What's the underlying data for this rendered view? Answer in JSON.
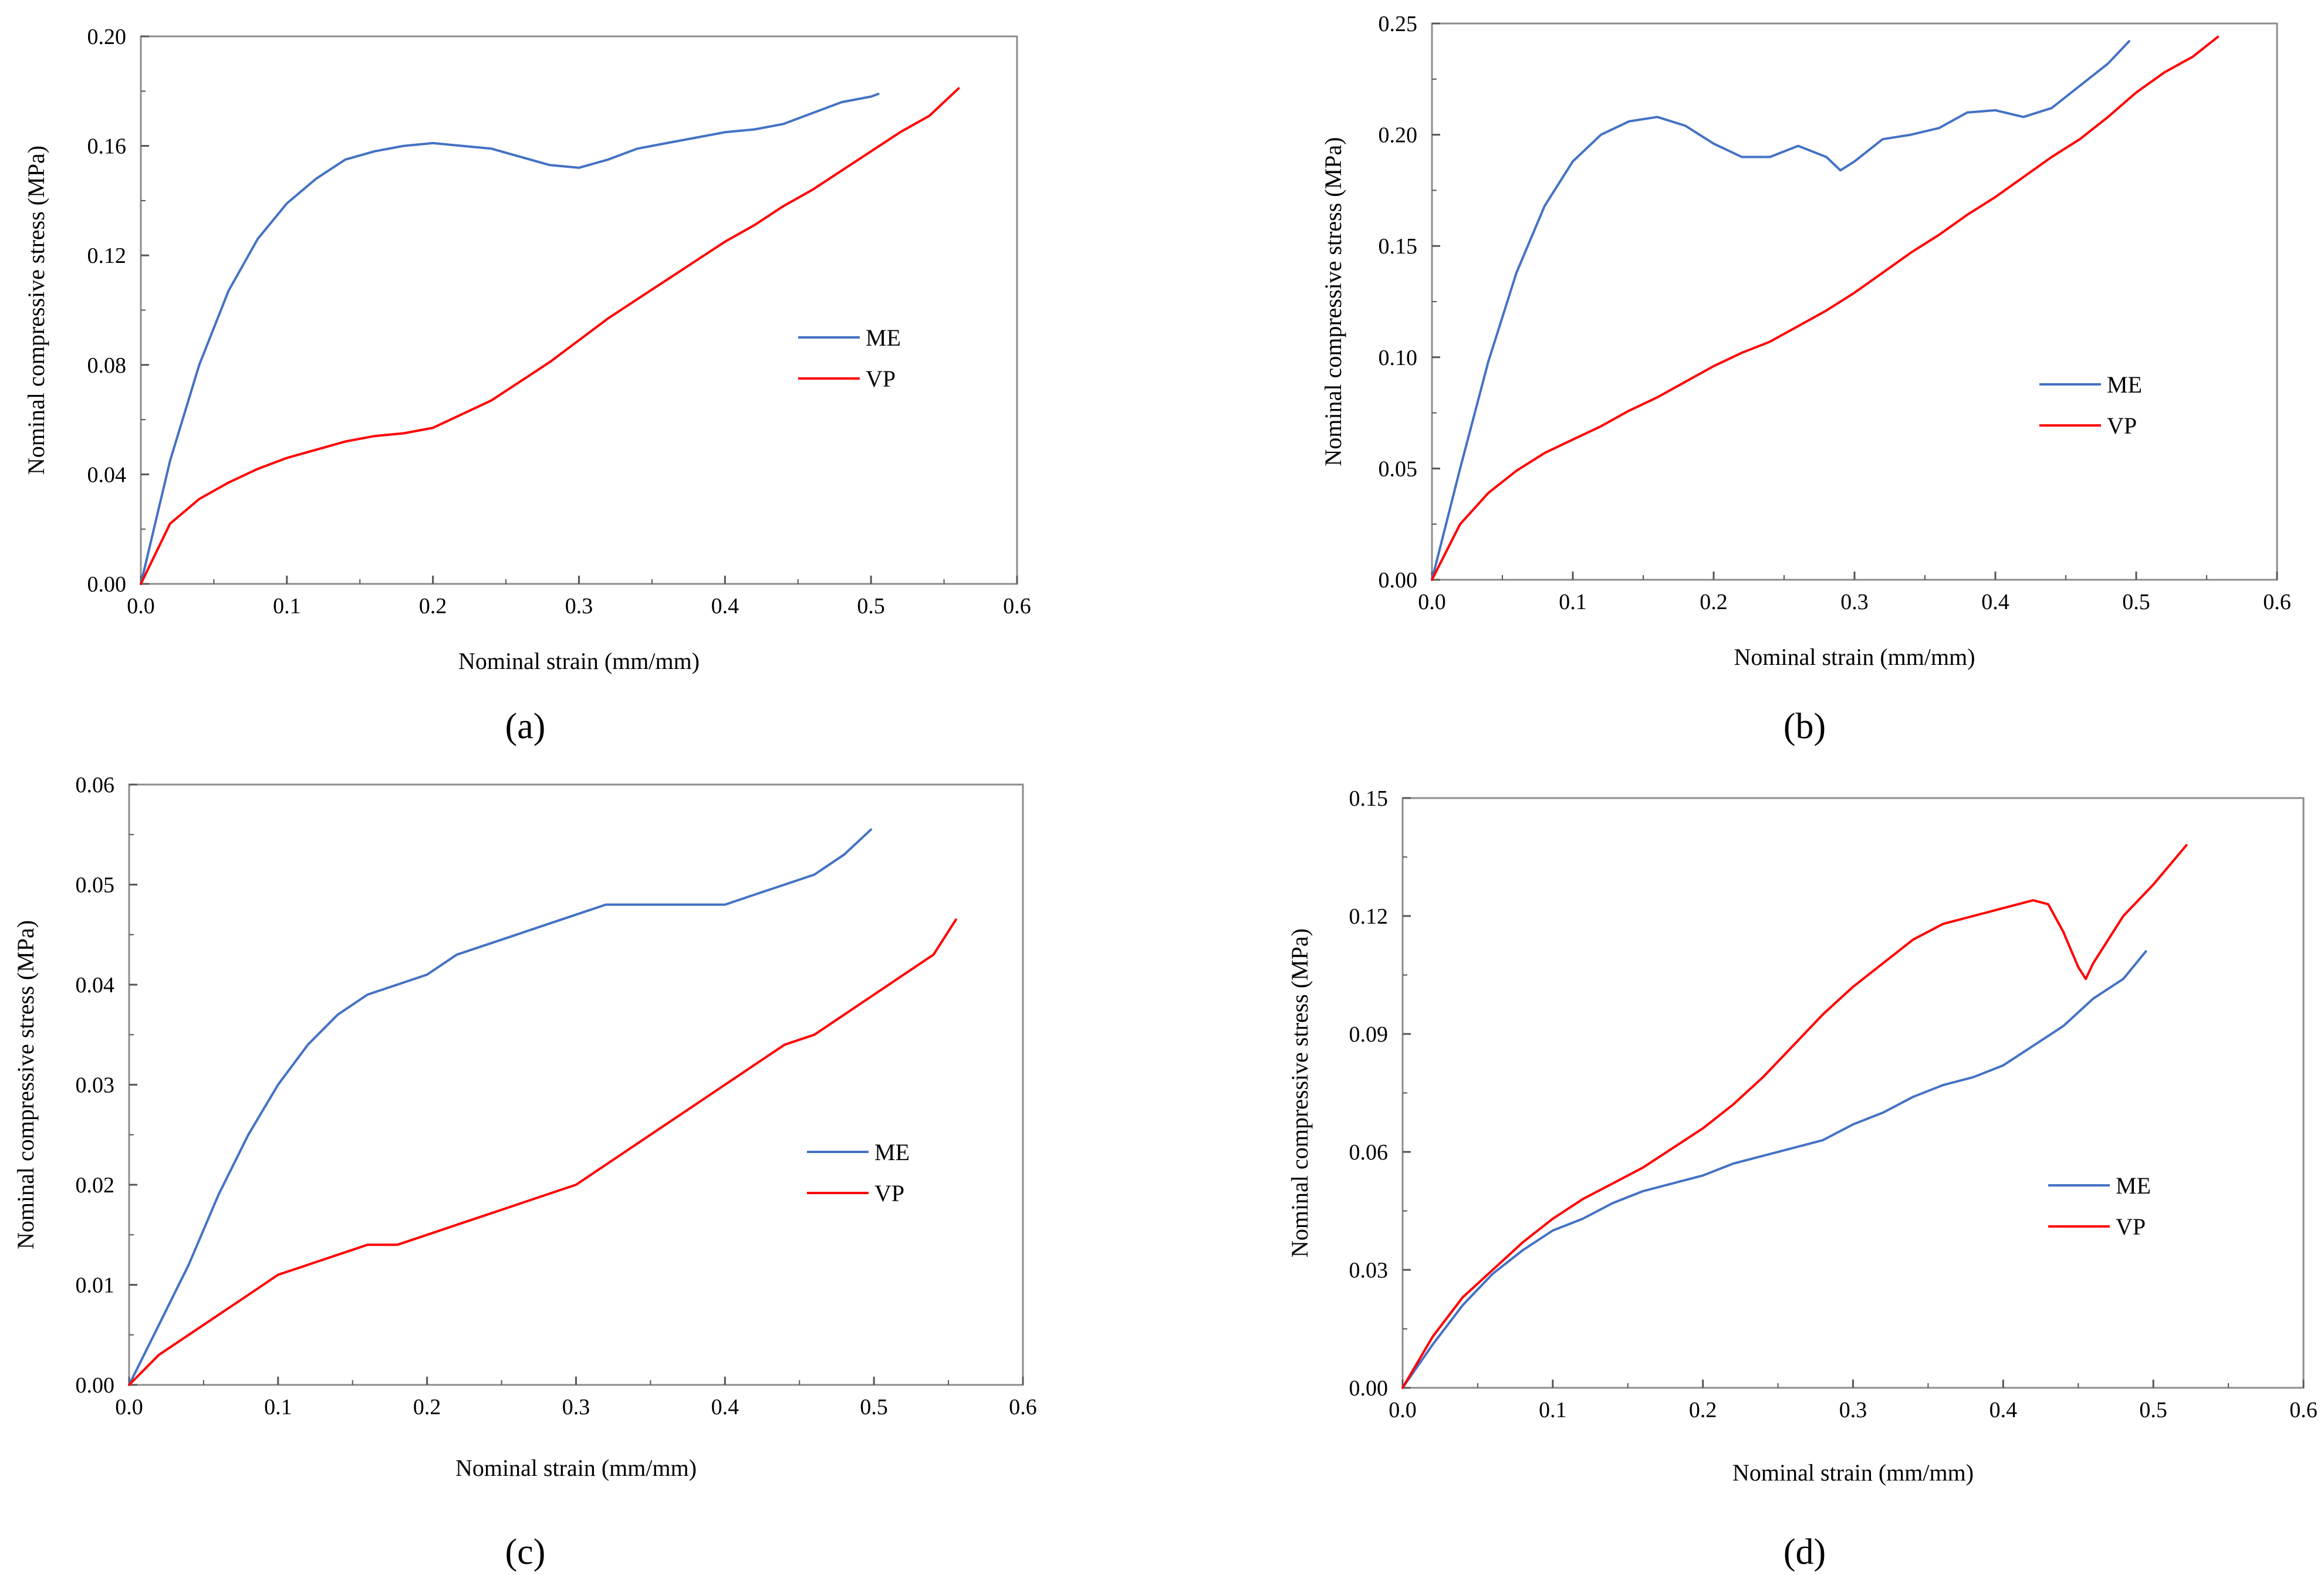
{
  "figure": {
    "panels": [
      "a",
      "b",
      "c",
      "d"
    ]
  },
  "chart_data": [
    {
      "type": "line",
      "panel": "a",
      "panel_label": "(a)",
      "xlabel": "Nominal strain (mm/mm)",
      "ylabel": "Nominal compressive stress (MPa)",
      "xlim": [
        0,
        0.6
      ],
      "ylim": [
        0,
        0.2
      ],
      "x_ticks": [
        "0.0",
        "0.1",
        "0.2",
        "0.3",
        "0.4",
        "0.5",
        "0.6"
      ],
      "y_ticks": [
        "0.00",
        "0.04",
        "0.08",
        "0.12",
        "0.16",
        "0.20"
      ],
      "legend_position": "right-middle",
      "series": [
        {
          "name": "ME",
          "color": "#4472c4",
          "x": [
            0,
            0.02,
            0.04,
            0.06,
            0.08,
            0.1,
            0.12,
            0.14,
            0.16,
            0.18,
            0.2,
            0.22,
            0.24,
            0.26,
            0.28,
            0.3,
            0.32,
            0.34,
            0.36,
            0.38,
            0.4,
            0.42,
            0.44,
            0.46,
            0.48,
            0.5,
            0.505
          ],
          "y": [
            0,
            0.045,
            0.08,
            0.107,
            0.126,
            0.139,
            0.148,
            0.155,
            0.158,
            0.16,
            0.161,
            0.16,
            0.159,
            0.156,
            0.153,
            0.152,
            0.155,
            0.159,
            0.161,
            0.163,
            0.165,
            0.166,
            0.168,
            0.172,
            0.176,
            0.178,
            0.179
          ]
        },
        {
          "name": "VP",
          "color": "#ff0000",
          "x": [
            0,
            0.02,
            0.04,
            0.06,
            0.08,
            0.1,
            0.12,
            0.14,
            0.16,
            0.18,
            0.2,
            0.22,
            0.24,
            0.26,
            0.28,
            0.3,
            0.32,
            0.34,
            0.36,
            0.38,
            0.4,
            0.42,
            0.44,
            0.46,
            0.48,
            0.5,
            0.52,
            0.54,
            0.56
          ],
          "y": [
            0,
            0.022,
            0.031,
            0.037,
            0.042,
            0.046,
            0.049,
            0.052,
            0.054,
            0.055,
            0.057,
            0.062,
            0.067,
            0.074,
            0.081,
            0.089,
            0.097,
            0.104,
            0.111,
            0.118,
            0.125,
            0.131,
            0.138,
            0.144,
            0.151,
            0.158,
            0.165,
            0.171,
            0.181
          ]
        }
      ]
    },
    {
      "type": "line",
      "panel": "b",
      "panel_label": "(b)",
      "xlabel": "Nominal strain (mm/mm)",
      "ylabel": "Nominal compressive stress (MPa)",
      "xlim": [
        0,
        0.6
      ],
      "ylim": [
        0,
        0.25
      ],
      "x_ticks": [
        "0.0",
        "0.1",
        "0.2",
        "0.3",
        "0.4",
        "0.5",
        "0.6"
      ],
      "y_ticks": [
        "0.00",
        "0.05",
        "0.10",
        "0.15",
        "0.20",
        "0.25"
      ],
      "legend_position": "right-middle",
      "series": [
        {
          "name": "ME",
          "color": "#4472c4",
          "x": [
            0,
            0.02,
            0.04,
            0.06,
            0.08,
            0.1,
            0.12,
            0.14,
            0.16,
            0.18,
            0.2,
            0.22,
            0.24,
            0.26,
            0.28,
            0.29,
            0.3,
            0.32,
            0.34,
            0.36,
            0.38,
            0.4,
            0.42,
            0.44,
            0.46,
            0.48,
            0.495
          ],
          "y": [
            0,
            0.05,
            0.098,
            0.138,
            0.168,
            0.188,
            0.2,
            0.206,
            0.208,
            0.204,
            0.196,
            0.19,
            0.19,
            0.195,
            0.19,
            0.184,
            0.188,
            0.198,
            0.2,
            0.203,
            0.21,
            0.211,
            0.208,
            0.212,
            0.222,
            0.232,
            0.242
          ]
        },
        {
          "name": "VP",
          "color": "#ff0000",
          "x": [
            0,
            0.02,
            0.04,
            0.06,
            0.08,
            0.1,
            0.12,
            0.14,
            0.16,
            0.18,
            0.2,
            0.22,
            0.24,
            0.26,
            0.28,
            0.3,
            0.32,
            0.34,
            0.36,
            0.38,
            0.4,
            0.42,
            0.44,
            0.46,
            0.48,
            0.5,
            0.52,
            0.54,
            0.558
          ],
          "y": [
            0,
            0.025,
            0.039,
            0.049,
            0.057,
            0.063,
            0.069,
            0.076,
            0.082,
            0.089,
            0.096,
            0.102,
            0.107,
            0.114,
            0.121,
            0.129,
            0.138,
            0.147,
            0.155,
            0.164,
            0.172,
            0.181,
            0.19,
            0.198,
            0.208,
            0.219,
            0.228,
            0.235,
            0.244
          ]
        }
      ]
    },
    {
      "type": "line",
      "panel": "c",
      "panel_label": "(c)",
      "xlabel": "Nominal strain (mm/mm)",
      "ylabel": "Nominal compressive stress (MPa)",
      "xlim": [
        0,
        0.6
      ],
      "ylim": [
        0,
        0.06
      ],
      "x_ticks": [
        "0.0",
        "0.1",
        "0.2",
        "0.3",
        "0.4",
        "0.5",
        "0.6"
      ],
      "y_ticks": [
        "0.00",
        "0.01",
        "0.02",
        "0.03",
        "0.04",
        "0.05",
        "0.06"
      ],
      "legend_position": "right-middle",
      "series": [
        {
          "name": "ME",
          "color": "#4472c4",
          "x": [
            0,
            0.02,
            0.04,
            0.06,
            0.08,
            0.1,
            0.12,
            0.14,
            0.16,
            0.18,
            0.2,
            0.22,
            0.24,
            0.26,
            0.28,
            0.3,
            0.32,
            0.34,
            0.36,
            0.38,
            0.4,
            0.42,
            0.44,
            0.46,
            0.48,
            0.498
          ],
          "y": [
            0,
            0.006,
            0.012,
            0.019,
            0.025,
            0.03,
            0.034,
            0.037,
            0.039,
            0.04,
            0.041,
            0.043,
            0.044,
            0.045,
            0.046,
            0.047,
            0.048,
            0.048,
            0.048,
            0.048,
            0.048,
            0.049,
            0.05,
            0.051,
            0.053,
            0.0555
          ]
        },
        {
          "name": "VP",
          "color": "#ff0000",
          "x": [
            0,
            0.02,
            0.04,
            0.06,
            0.08,
            0.1,
            0.12,
            0.14,
            0.16,
            0.18,
            0.2,
            0.22,
            0.24,
            0.26,
            0.28,
            0.3,
            0.32,
            0.34,
            0.36,
            0.38,
            0.4,
            0.42,
            0.44,
            0.46,
            0.48,
            0.5,
            0.52,
            0.54,
            0.555
          ],
          "y": [
            0,
            0.003,
            0.005,
            0.007,
            0.009,
            0.011,
            0.012,
            0.013,
            0.014,
            0.014,
            0.015,
            0.016,
            0.017,
            0.018,
            0.019,
            0.02,
            0.022,
            0.024,
            0.026,
            0.028,
            0.03,
            0.032,
            0.034,
            0.035,
            0.037,
            0.039,
            0.041,
            0.043,
            0.0465
          ]
        }
      ]
    },
    {
      "type": "line",
      "panel": "d",
      "panel_label": "(d)",
      "xlabel": "Nominal strain (mm/mm)",
      "ylabel": "Nominal compressive stress (MPa)",
      "xlim": [
        0,
        0.6
      ],
      "ylim": [
        0,
        0.15
      ],
      "x_ticks": [
        "0.0",
        "0.1",
        "0.2",
        "0.3",
        "0.4",
        "0.5",
        "0.6"
      ],
      "y_ticks": [
        "0.00",
        "0.03",
        "0.06",
        "0.09",
        "0.12",
        "0.15"
      ],
      "legend_position": "right-middle",
      "series": [
        {
          "name": "ME",
          "color": "#4472c4",
          "x": [
            0,
            0.02,
            0.04,
            0.06,
            0.08,
            0.1,
            0.12,
            0.14,
            0.16,
            0.18,
            0.2,
            0.22,
            0.24,
            0.26,
            0.28,
            0.3,
            0.32,
            0.34,
            0.36,
            0.38,
            0.4,
            0.42,
            0.44,
            0.46,
            0.48,
            0.495
          ],
          "y": [
            0,
            0.011,
            0.021,
            0.029,
            0.035,
            0.04,
            0.043,
            0.047,
            0.05,
            0.052,
            0.054,
            0.057,
            0.059,
            0.061,
            0.063,
            0.067,
            0.07,
            0.074,
            0.077,
            0.079,
            0.082,
            0.087,
            0.092,
            0.099,
            0.104,
            0.111
          ]
        },
        {
          "name": "VP",
          "color": "#ff0000",
          "x": [
            0,
            0.02,
            0.04,
            0.06,
            0.08,
            0.1,
            0.12,
            0.14,
            0.16,
            0.18,
            0.2,
            0.22,
            0.24,
            0.26,
            0.28,
            0.3,
            0.32,
            0.34,
            0.36,
            0.38,
            0.4,
            0.42,
            0.43,
            0.44,
            0.45,
            0.455,
            0.46,
            0.48,
            0.5,
            0.522
          ],
          "y": [
            0,
            0.013,
            0.023,
            0.03,
            0.037,
            0.043,
            0.048,
            0.052,
            0.056,
            0.061,
            0.066,
            0.072,
            0.079,
            0.087,
            0.095,
            0.102,
            0.108,
            0.114,
            0.118,
            0.12,
            0.122,
            0.124,
            0.123,
            0.116,
            0.107,
            0.104,
            0.108,
            0.12,
            0.128,
            0.138
          ]
        }
      ]
    }
  ]
}
